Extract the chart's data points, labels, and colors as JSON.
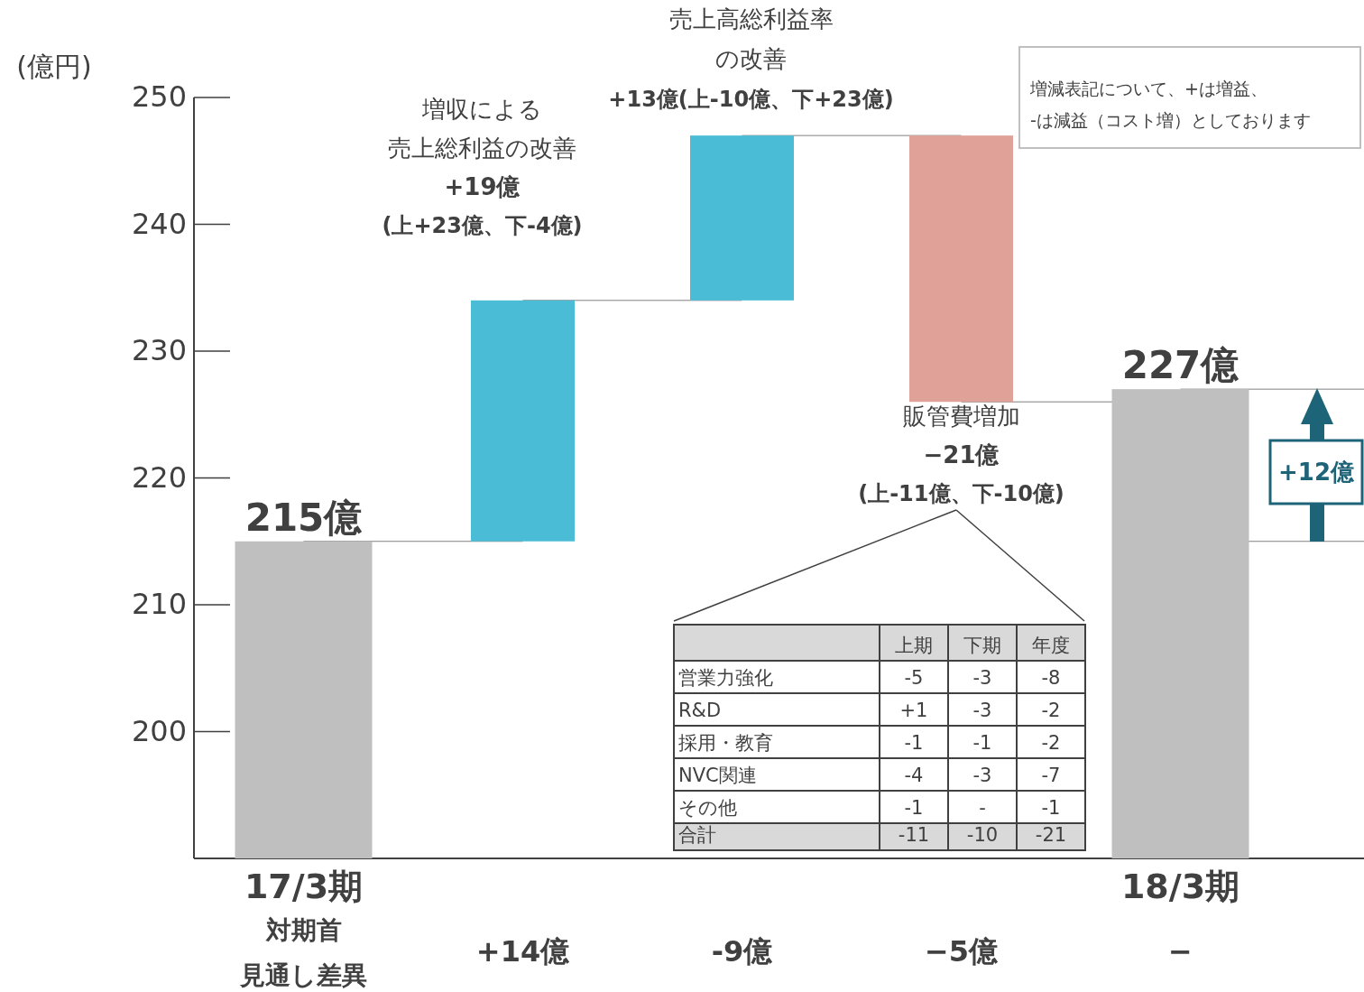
{
  "chart_data": {
    "type": "bar",
    "ylabel": "(億円)",
    "categories": [
      "17/3期",
      null,
      null,
      null,
      "18/3期"
    ],
    "values": [
      215,
      19,
      13,
      -21,
      227
    ],
    "base": [
      null,
      215,
      234,
      247,
      null
    ],
    "colors": [
      "#bfbfbf",
      "#4bbcd6",
      "#4bbcd6",
      "#e0a198",
      "#bfbfbf"
    ],
    "value_labels": [
      "215億",
      null,
      null,
      null,
      "227億"
    ],
    "ylim": [
      190,
      250
    ],
    "yticks": [
      200,
      210,
      220,
      230,
      240,
      250
    ],
    "annotations": [
      "増収による",
      "売上総利益の改善",
      "+19億",
      "(上+23億、下-4億)",
      "売上高総利益率",
      "の改善",
      {
        "text": "+13億(上-10億、下+23億)",
        "y": 247
      },
      "販管費増加",
      "−21億",
      "(上-11億、下-10億)",
      "増減表記について、+は増益、",
      "-は減益（コスト増）としております",
      "+12億",
      "対期首",
      "見通し差異",
      "+14億",
      "-9億",
      "−5億",
      "−",
      "\t上期\t下期\t年度",
      "営業力強化\t-5\t-3\t-8",
      "R&D\t+1\t-3\t-2",
      "採用・教育\t-1\t-1\t-2",
      "NVC関連\t-4\t-3\t-7",
      "その他\t-1\t-\t-1",
      "合計\t-11\t-10\t-21"
    ]
  }
}
